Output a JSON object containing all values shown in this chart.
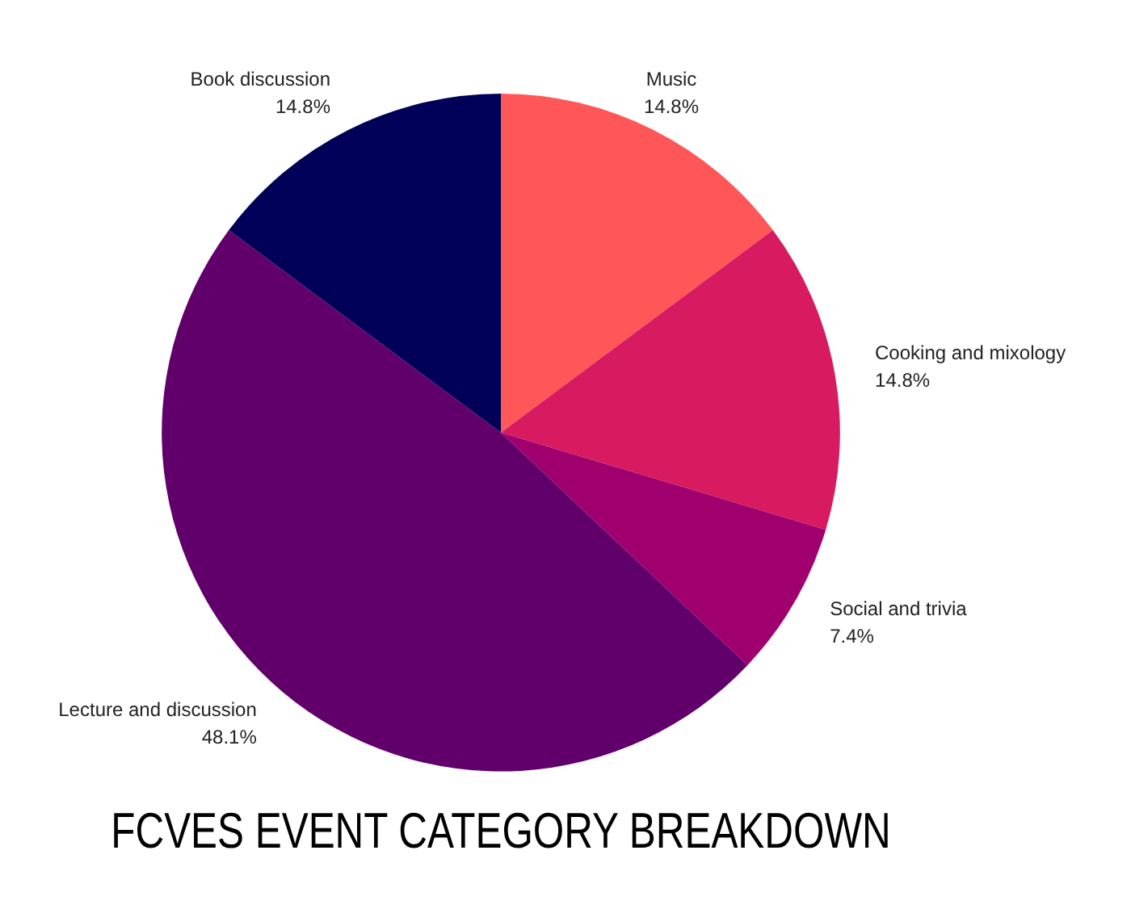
{
  "chart_data": {
    "type": "pie",
    "title": "FCVES EVENT CATEGORY BREAKDOWN",
    "categories": [
      "Music",
      "Cooking and mixology",
      "Social and trivia",
      "Lecture and discussion",
      "Book discussion"
    ],
    "values": [
      14.8,
      14.8,
      7.4,
      48.1,
      14.8
    ],
    "colors": [
      "#ff5757",
      "#d81b60",
      "#a0006e",
      "#62006b",
      "#000058"
    ],
    "value_labels": [
      "14.8%",
      "14.8%",
      "7.4%",
      "48.1%",
      "14.8%"
    ],
    "legend": false
  }
}
